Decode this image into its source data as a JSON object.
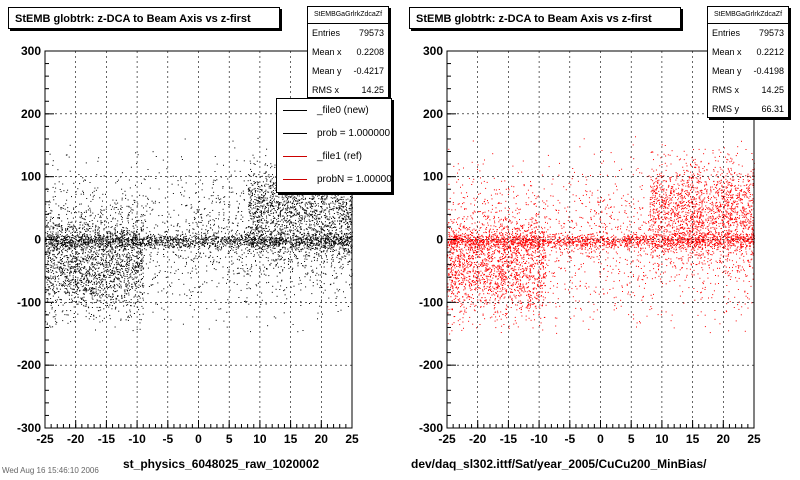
{
  "chart_data": [
    {
      "type": "scatter",
      "title": "StEMB globtrk: z-DCA to Beam Axis vs z-first",
      "xlabel": "st_physics_6048025_raw_1020002",
      "ylabel": "",
      "xlim": [
        -25,
        25
      ],
      "ylim": [
        -300,
        300
      ],
      "xticks": [
        "-25",
        "-20",
        "-15",
        "-10",
        "-5",
        "0",
        "5",
        "10",
        "15",
        "20",
        "25"
      ],
      "yticks": [
        "300",
        "200",
        "100",
        "0",
        "-100",
        "-200",
        "-300"
      ],
      "grid": true,
      "marker_color": "#000000",
      "stats": {
        "name": "StEMBGaGrlrkZdcaZf",
        "rows": [
          {
            "label": "Entries",
            "value": "79573"
          },
          {
            "label": "Mean x",
            "value": "0.2208"
          },
          {
            "label": "Mean y",
            "value": "-0.4217"
          },
          {
            "label": "RMS x",
            "value": "14.25"
          }
        ]
      },
      "legend": {
        "placement": "top-right",
        "entries": [
          {
            "label": "_file0 (new)",
            "color": "#000000"
          },
          {
            "label": "prob = 1.000000",
            "color": "#000000"
          },
          {
            "label": "_file1 (ref)",
            "color": "#cc0000"
          },
          {
            "label": "probN = 1.000000",
            "color": "#cc0000"
          }
        ]
      }
    },
    {
      "type": "scatter",
      "title": "StEMB globtrk: z-DCA to Beam Axis vs z-first",
      "xlabel": "dev/daq_sl302.ittf/Sat/year_2005/CuCu200_MinBias/",
      "ylabel": "",
      "xlim": [
        -25,
        25
      ],
      "ylim": [
        -300,
        300
      ],
      "xticks": [
        "-25",
        "-20",
        "-15",
        "-10",
        "-5",
        "0",
        "5",
        "10",
        "15",
        "20",
        "25"
      ],
      "yticks": [
        "300",
        "200",
        "100",
        "0",
        "-100",
        "-200",
        "-300"
      ],
      "grid": true,
      "marker_color": "#ff0000",
      "stats": {
        "name": "StEMBGaGrlrkZdcaZf",
        "rows": [
          {
            "label": "Entries",
            "value": "79573"
          },
          {
            "label": "Mean x",
            "value": "0.2212"
          },
          {
            "label": "Mean y",
            "value": "-0.4198"
          },
          {
            "label": "RMS x",
            "value": "14.25"
          },
          {
            "label": "RMS y",
            "value": "66.31"
          }
        ]
      }
    }
  ],
  "footer_text": "Wed Aug 16 15:46:10 2006"
}
